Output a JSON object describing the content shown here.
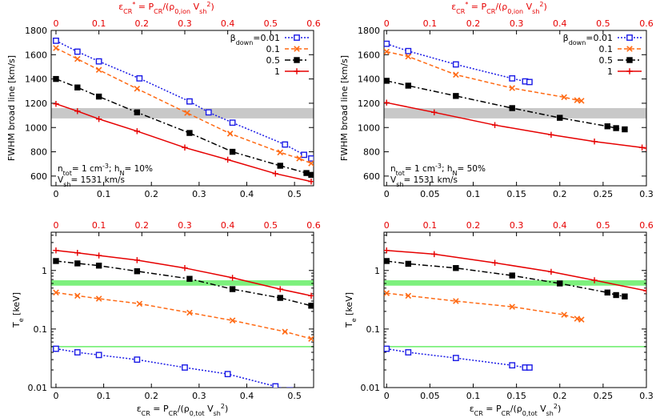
{
  "colors": {
    "b001": "#1a1ae6",
    "b01": "#ff6a14",
    "b05": "#000000",
    "b1": "#e60000",
    "top_axis": "#e60000",
    "gray_band": "#c8c8c8",
    "green_band": "#7df07d"
  },
  "chart_data": [
    {
      "id": "top-left",
      "type": "line",
      "xlabel": "",
      "ylabel": "FWHM broad line  [km/s]",
      "xlim": [
        -0.01,
        0.54
      ],
      "ylim": [
        520,
        1800
      ],
      "xscale": "linear",
      "yscale": "linear",
      "xticks": [
        0,
        0.1,
        0.2,
        0.3,
        0.4,
        0.5
      ],
      "yticks": [
        600,
        800,
        1000,
        1200,
        1400,
        1600,
        1800
      ],
      "top_xticks": [
        "0",
        "0.1",
        "0.2",
        "0.3",
        "0.4",
        "0.5",
        "0.6"
      ],
      "top_xlabel": "εCR* = PCR/(ρ0,ion Vsh2)",
      "band": {
        "from": 1075,
        "to": 1160,
        "color_key": "gray_band"
      },
      "show_legend": true,
      "legend_title": "βdown=",
      "annotation": [
        "ntot= 1 cm-3; hN= 10%",
        "Vsh= 1531 km/s"
      ],
      "series": [
        {
          "name": "0.01",
          "color_key": "b001",
          "dash": "2,2",
          "marker": "square-open",
          "points": [
            [
              0,
              1715
            ],
            [
              0.045,
              1625
            ],
            [
              0.09,
              1545
            ],
            [
              0.175,
              1405
            ],
            [
              0.28,
              1215
            ],
            [
              0.32,
              1125
            ],
            [
              0.37,
              1040
            ],
            [
              0.48,
              860
            ],
            [
              0.52,
              775
            ],
            [
              0.535,
              745
            ]
          ]
        },
        {
          "name": "0.1",
          "color_key": "b01",
          "dash": "5,3",
          "marker": "x",
          "points": [
            [
              0,
              1655
            ],
            [
              0.045,
              1565
            ],
            [
              0.09,
              1475
            ],
            [
              0.17,
              1320
            ],
            [
              0.275,
              1120
            ],
            [
              0.365,
              950
            ],
            [
              0.47,
              795
            ],
            [
              0.51,
              745
            ],
            [
              0.535,
              705
            ]
          ]
        },
        {
          "name": "0.5",
          "color_key": "b05",
          "dash": "7,3,2,3",
          "marker": "square-filled",
          "points": [
            [
              0,
              1400
            ],
            [
              0.045,
              1330
            ],
            [
              0.09,
              1255
            ],
            [
              0.17,
              1125
            ],
            [
              0.28,
              955
            ],
            [
              0.37,
              800
            ],
            [
              0.47,
              685
            ],
            [
              0.525,
              625
            ],
            [
              0.535,
              610
            ]
          ]
        },
        {
          "name": "1",
          "color_key": "b1",
          "dash": "",
          "marker": "plus",
          "points": [
            [
              0,
              1195
            ],
            [
              0.045,
              1135
            ],
            [
              0.09,
              1070
            ],
            [
              0.17,
              970
            ],
            [
              0.27,
              835
            ],
            [
              0.36,
              735
            ],
            [
              0.46,
              620
            ],
            [
              0.535,
              555
            ]
          ]
        }
      ]
    },
    {
      "id": "top-right",
      "type": "line",
      "xlabel": "",
      "ylabel": "FWHM broad line  [km/s]",
      "xlim": [
        -0.003,
        0.3
      ],
      "ylim": [
        520,
        1800
      ],
      "xscale": "linear",
      "yscale": "linear",
      "xticks": [
        0,
        0.05,
        0.1,
        0.15,
        0.2,
        0.25,
        0.3
      ],
      "yticks": [
        600,
        800,
        1000,
        1200,
        1400,
        1600,
        1800
      ],
      "top_xticks": [
        "0",
        "0.1",
        "0.2",
        "0.3",
        "0.4",
        "0.5",
        "0.6"
      ],
      "top_xlabel": "εCR* = PCR/(ρ0,ion Vsh2)",
      "band": {
        "from": 1075,
        "to": 1160,
        "color_key": "gray_band"
      },
      "show_legend": true,
      "legend_title": "βdown=",
      "annotation": [
        "ntot= 1 cm-3; hN= 50%",
        "Vsh= 1531 km/s"
      ],
      "series": [
        {
          "name": "0.01",
          "color_key": "b001",
          "dash": "2,2",
          "marker": "square-open",
          "points": [
            [
              0,
              1690
            ],
            [
              0.025,
              1630
            ],
            [
              0.08,
              1520
            ],
            [
              0.145,
              1405
            ],
            [
              0.16,
              1380
            ],
            [
              0.165,
              1375
            ]
          ]
        },
        {
          "name": "0.1",
          "color_key": "b01",
          "dash": "5,3",
          "marker": "x",
          "points": [
            [
              0,
              1625
            ],
            [
              0.025,
              1585
            ],
            [
              0.08,
              1435
            ],
            [
              0.145,
              1325
            ],
            [
              0.205,
              1250
            ],
            [
              0.22,
              1225
            ],
            [
              0.225,
              1220
            ]
          ]
        },
        {
          "name": "0.5",
          "color_key": "b05",
          "dash": "7,3,2,3",
          "marker": "square-filled",
          "points": [
            [
              0,
              1385
            ],
            [
              0.025,
              1345
            ],
            [
              0.08,
              1260
            ],
            [
              0.145,
              1160
            ],
            [
              0.2,
              1080
            ],
            [
              0.255,
              1010
            ],
            [
              0.265,
              995
            ],
            [
              0.275,
              985
            ]
          ]
        },
        {
          "name": "1",
          "color_key": "b1",
          "dash": "",
          "marker": "plus",
          "points": [
            [
              0,
              1205
            ],
            [
              0.055,
              1125
            ],
            [
              0.125,
              1020
            ],
            [
              0.19,
              940
            ],
            [
              0.24,
              885
            ],
            [
              0.295,
              835
            ],
            [
              0.3,
              830
            ]
          ]
        }
      ]
    },
    {
      "id": "bottom-left",
      "type": "line",
      "xlabel": "εCR = PCR/(ρ0,tot Vsh2)",
      "ylabel": "Te  [keV]",
      "xlim": [
        -0.01,
        0.54
      ],
      "ylim": [
        0.01,
        4.5
      ],
      "xscale": "linear",
      "yscale": "log",
      "xticks": [
        0,
        0.1,
        0.2,
        0.3,
        0.4,
        0.5
      ],
      "yticks": [
        0.01,
        0.1,
        1
      ],
      "yticklabels": [
        "0.01",
        "0.1",
        "1"
      ],
      "top_xticks": [
        "0",
        "0.1",
        "0.2",
        "0.3",
        "0.4",
        "0.5",
        "0.6"
      ],
      "top_xlabel": "",
      "band": {
        "from": 0.55,
        "to": 0.68,
        "color_key": "green_band"
      },
      "hline": {
        "y": 0.05,
        "color_key": "green_band"
      },
      "show_legend": false,
      "series": [
        {
          "name": "0.01",
          "color_key": "b001",
          "dash": "2,2",
          "marker": "square-open",
          "points": [
            [
              0,
              0.046
            ],
            [
              0.045,
              0.04
            ],
            [
              0.09,
              0.036
            ],
            [
              0.17,
              0.03
            ],
            [
              0.27,
              0.022
            ],
            [
              0.36,
              0.017
            ],
            [
              0.46,
              0.0105
            ],
            [
              0.49,
              0.009
            ]
          ]
        },
        {
          "name": "0.1",
          "color_key": "b01",
          "dash": "5,3",
          "marker": "x",
          "points": [
            [
              0,
              0.42
            ],
            [
              0.045,
              0.37
            ],
            [
              0.09,
              0.33
            ],
            [
              0.175,
              0.27
            ],
            [
              0.28,
              0.19
            ],
            [
              0.37,
              0.14
            ],
            [
              0.48,
              0.09
            ],
            [
              0.535,
              0.068
            ]
          ]
        },
        {
          "name": "0.5",
          "color_key": "b05",
          "dash": "7,3,2,3",
          "marker": "square-filled",
          "points": [
            [
              0,
              1.45
            ],
            [
              0.045,
              1.32
            ],
            [
              0.09,
              1.21
            ],
            [
              0.17,
              0.97
            ],
            [
              0.28,
              0.72
            ],
            [
              0.37,
              0.48
            ],
            [
              0.47,
              0.34
            ],
            [
              0.535,
              0.25
            ]
          ]
        },
        {
          "name": "1",
          "color_key": "b1",
          "dash": "",
          "marker": "plus",
          "points": [
            [
              0,
              2.2
            ],
            [
              0.045,
              2.0
            ],
            [
              0.09,
              1.8
            ],
            [
              0.17,
              1.5
            ],
            [
              0.27,
              1.1
            ],
            [
              0.37,
              0.75
            ],
            [
              0.47,
              0.48
            ],
            [
              0.535,
              0.37
            ]
          ]
        }
      ]
    },
    {
      "id": "bottom-right",
      "type": "line",
      "xlabel": "εCR = PCR/(ρ0,tot Vsh2)",
      "ylabel": "Te  [keV]",
      "xlim": [
        -0.003,
        0.3
      ],
      "ylim": [
        0.01,
        4.5
      ],
      "xscale": "linear",
      "yscale": "log",
      "xticks": [
        0,
        0.05,
        0.1,
        0.15,
        0.2,
        0.25,
        0.3
      ],
      "yticks": [
        0.01,
        0.1,
        1
      ],
      "yticklabels": [
        "0.01",
        "0.1",
        "1"
      ],
      "top_xticks": [
        "0",
        "0.1",
        "0.2",
        "0.3",
        "0.4",
        "0.5",
        "0.6"
      ],
      "top_xlabel": "",
      "band": {
        "from": 0.55,
        "to": 0.68,
        "color_key": "green_band"
      },
      "hline": {
        "y": 0.05,
        "color_key": "green_band"
      },
      "show_legend": false,
      "series": [
        {
          "name": "0.01",
          "color_key": "b001",
          "dash": "2,2",
          "marker": "square-open",
          "points": [
            [
              0,
              0.046
            ],
            [
              0.025,
              0.04
            ],
            [
              0.08,
              0.032
            ],
            [
              0.145,
              0.024
            ],
            [
              0.16,
              0.022
            ],
            [
              0.165,
              0.022
            ]
          ]
        },
        {
          "name": "0.1",
          "color_key": "b01",
          "dash": "5,3",
          "marker": "x",
          "points": [
            [
              0,
              0.41
            ],
            [
              0.025,
              0.37
            ],
            [
              0.08,
              0.3
            ],
            [
              0.145,
              0.24
            ],
            [
              0.205,
              0.175
            ],
            [
              0.22,
              0.15
            ],
            [
              0.225,
              0.145
            ]
          ]
        },
        {
          "name": "0.5",
          "color_key": "b05",
          "dash": "7,3,2,3",
          "marker": "square-filled",
          "points": [
            [
              0,
              1.45
            ],
            [
              0.025,
              1.3
            ],
            [
              0.08,
              1.1
            ],
            [
              0.145,
              0.82
            ],
            [
              0.2,
              0.6
            ],
            [
              0.255,
              0.42
            ],
            [
              0.265,
              0.38
            ],
            [
              0.275,
              0.36
            ]
          ]
        },
        {
          "name": "1",
          "color_key": "b1",
          "dash": "",
          "marker": "plus",
          "points": [
            [
              0,
              2.2
            ],
            [
              0.055,
              1.9
            ],
            [
              0.125,
              1.35
            ],
            [
              0.19,
              0.95
            ],
            [
              0.24,
              0.68
            ],
            [
              0.3,
              0.45
            ]
          ]
        }
      ]
    }
  ]
}
